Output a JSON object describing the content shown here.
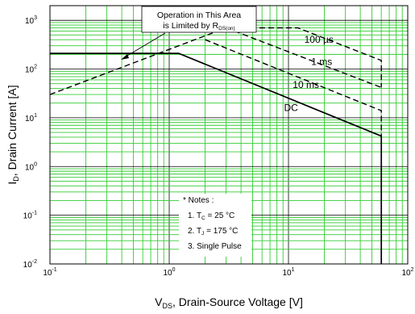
{
  "chart_data": {
    "type": "line",
    "title": "",
    "xlabel": {
      "main": "V",
      "sub": "DS",
      "rest": ", Drain-Source Voltage [V]"
    },
    "ylabel": {
      "main": "I",
      "sub": "D",
      "rest": ", Drain Current [A]"
    },
    "xscale": "log",
    "yscale": "log",
    "xlim": [
      0.1,
      100
    ],
    "ylim": [
      0.01,
      2000
    ],
    "grid": true,
    "grid_color": "#33cc33",
    "x_ticks": [
      {
        "base": "10",
        "exp": "-1"
      },
      {
        "base": "10",
        "exp": "0"
      },
      {
        "base": "10",
        "exp": "1"
      },
      {
        "base": "10",
        "exp": "2"
      }
    ],
    "y_ticks": [
      {
        "base": "10",
        "exp": "-2"
      },
      {
        "base": "10",
        "exp": "-1"
      },
      {
        "base": "10",
        "exp": "0"
      },
      {
        "base": "10",
        "exp": "1"
      },
      {
        "base": "10",
        "exp": "2"
      },
      {
        "base": "10",
        "exp": "3"
      }
    ],
    "series": [
      {
        "name": "DC",
        "style": "solid",
        "points": [
          [
            0.1,
            210
          ],
          [
            1.2,
            210
          ],
          [
            60,
            4.2
          ],
          [
            60,
            0.01
          ]
        ]
      },
      {
        "name": "10 ms",
        "style": "dashed",
        "points": [
          [
            2.0,
            400
          ],
          [
            60,
            14
          ],
          [
            60,
            0.01
          ]
        ]
      },
      {
        "name": "1 ms",
        "style": "dashed",
        "points": [
          [
            3.0,
            700
          ],
          [
            60,
            42
          ]
        ]
      },
      {
        "name": "100 µs",
        "style": "dashed",
        "points": [
          [
            0.1,
            30
          ],
          [
            3.0,
            700
          ],
          [
            12,
            700
          ],
          [
            60,
            150
          ],
          [
            60,
            42
          ]
        ]
      }
    ],
    "curve_labels": [
      {
        "text": "100 µs",
        "x": 18,
        "y": 400
      },
      {
        "text": "1 ms",
        "x": 19,
        "y": 140
      },
      {
        "text": "10 ms",
        "x": 14,
        "y": 48
      },
      {
        "text": "DC",
        "x": 10.5,
        "y": 16
      }
    ],
    "annotation": {
      "line1": "Operation in This Area",
      "line2_main": "is Limited by R",
      "line2_sub": "DS(on)"
    },
    "notes": {
      "title": "* Notes :",
      "n1_main": "1. T",
      "n1_sub": "C",
      "n1_rest": " = 25 °C",
      "n2_main": "2. T",
      "n2_sub": "J",
      "n2_rest": " = 175 °C",
      "n3": "3. Single Pulse"
    }
  }
}
